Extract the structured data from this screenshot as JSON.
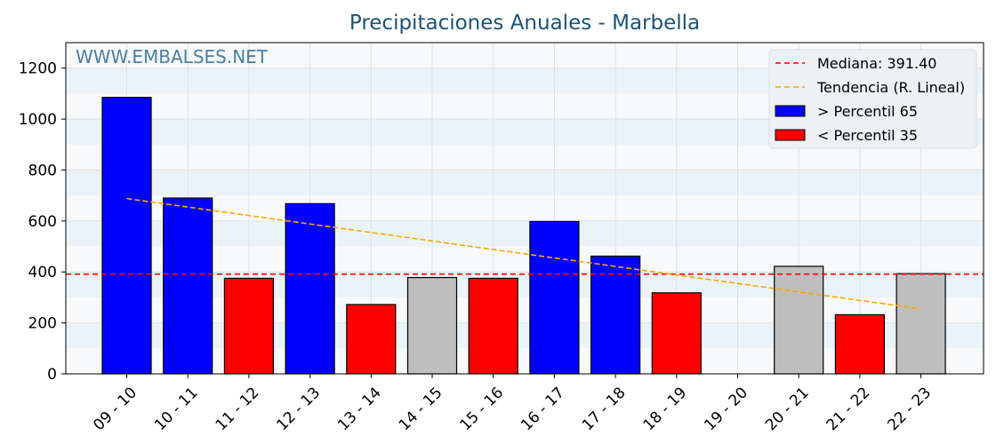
{
  "watermark": "WWW.EMBALSES.NET",
  "colors": {
    "above": "#0000ff",
    "below": "#ff0000",
    "normal": "#bebebe",
    "median": "#ff0000",
    "trend": "#ffa500",
    "title": "#1a5276",
    "watermark": "#4a7fa0"
  },
  "chart_data": {
    "type": "bar",
    "title": "Precipitaciones Anuales - Marbella",
    "xlabel": "",
    "ylabel": "",
    "ylim": [
      0,
      1300
    ],
    "yticks": [
      0,
      200,
      400,
      600,
      800,
      1000,
      1200
    ],
    "grid": true,
    "legend_position": "top-right",
    "categories": [
      "09 - 10",
      "10 - 11",
      "11 - 12",
      "12 - 13",
      "13 - 14",
      "14 - 15",
      "15 - 16",
      "16 - 17",
      "17 - 18",
      "18 - 19",
      "19 - 20",
      "20 - 21",
      "21 - 22",
      "22 - 23"
    ],
    "values": [
      1085,
      690,
      375,
      668,
      272,
      378,
      375,
      598,
      462,
      318,
      null,
      422,
      232,
      393
    ],
    "bar_class": [
      "above",
      "above",
      "below",
      "above",
      "below",
      "normal",
      "below",
      "above",
      "above",
      "below",
      "none",
      "normal",
      "below",
      "normal"
    ],
    "median": {
      "label": "Mediana: 391.40",
      "value": 391.4
    },
    "trend": {
      "label": "Tendencia (R. Lineal)",
      "start": 688,
      "end": 255
    },
    "legend": [
      {
        "key": "median",
        "label": "Mediana: 391.40",
        "kind": "dashed-line"
      },
      {
        "key": "trend",
        "label": "Tendencia (R. Lineal)",
        "kind": "dashed-line"
      },
      {
        "key": "above",
        "label": " > Percentil 65",
        "kind": "patch"
      },
      {
        "key": "below",
        "label": " < Percentil 35",
        "kind": "patch"
      }
    ]
  }
}
